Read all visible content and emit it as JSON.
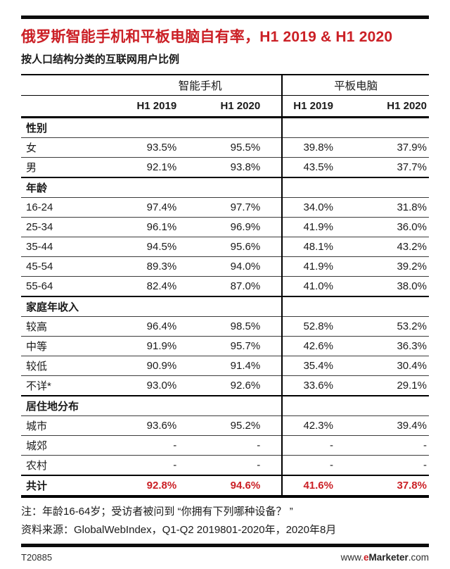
{
  "colors": {
    "accent": "#cb2026",
    "text": "#1a1a1a",
    "rule": "#000000"
  },
  "header": {
    "title": "俄罗斯智能手机和平板电脑自有率，H1 2019 & H1 2020",
    "subtitle": "按人口结构分类的互联网用户比例"
  },
  "chart_data": {
    "type": "table",
    "title": "俄罗斯智能手机和平板电脑自有率，H1 2019 & H1 2020",
    "subtitle": "按人口结构分类的互联网用户比例",
    "column_groups": [
      "智能手机",
      "平板电脑"
    ],
    "columns": [
      "H1 2019",
      "H1 2020",
      "H1 2019",
      "H1 2020"
    ],
    "rows": [
      {
        "type": "section",
        "label": "性别"
      },
      {
        "type": "data",
        "label": "女",
        "values": [
          "93.5%",
          "95.5%",
          "39.8%",
          "37.9%"
        ]
      },
      {
        "type": "data",
        "label": "男",
        "values": [
          "92.1%",
          "93.8%",
          "43.5%",
          "37.7%"
        ]
      },
      {
        "type": "section",
        "label": "年龄"
      },
      {
        "type": "data",
        "label": "16-24",
        "values": [
          "97.4%",
          "97.7%",
          "34.0%",
          "31.8%"
        ]
      },
      {
        "type": "data",
        "label": "25-34",
        "values": [
          "96.1%",
          "96.9%",
          "41.9%",
          "36.0%"
        ]
      },
      {
        "type": "data",
        "label": "35-44",
        "values": [
          "94.5%",
          "95.6%",
          "48.1%",
          "43.2%"
        ]
      },
      {
        "type": "data",
        "label": "45-54",
        "values": [
          "89.3%",
          "94.0%",
          "41.9%",
          "39.2%"
        ]
      },
      {
        "type": "data",
        "label": "55-64",
        "values": [
          "82.4%",
          "87.0%",
          "41.0%",
          "38.0%"
        ]
      },
      {
        "type": "section",
        "label": "家庭年收入"
      },
      {
        "type": "data",
        "label": "较高",
        "values": [
          "96.4%",
          "98.5%",
          "52.8%",
          "53.2%"
        ]
      },
      {
        "type": "data",
        "label": "中等",
        "values": [
          "91.9%",
          "95.7%",
          "42.6%",
          "36.3%"
        ]
      },
      {
        "type": "data",
        "label": "较低",
        "values": [
          "90.9%",
          "91.4%",
          "35.4%",
          "30.4%"
        ]
      },
      {
        "type": "data",
        "label": "不详*",
        "values": [
          "93.0%",
          "92.6%",
          "33.6%",
          "29.1%"
        ]
      },
      {
        "type": "section",
        "label": "居住地分布"
      },
      {
        "type": "data",
        "label": "城市",
        "values": [
          "93.6%",
          "95.2%",
          "42.3%",
          "39.4%"
        ]
      },
      {
        "type": "data",
        "label": "城郊",
        "values": [
          "-",
          "-",
          "-",
          "-"
        ]
      },
      {
        "type": "data",
        "label": "农村",
        "values": [
          "-",
          "-",
          "-",
          "-"
        ]
      },
      {
        "type": "total",
        "label": "共计",
        "values": [
          "92.8%",
          "94.6%",
          "41.6%",
          "37.8%"
        ]
      }
    ]
  },
  "notes": {
    "note": "注：年龄16-64岁；受访者被问到 “你拥有下列哪种设备？ ”",
    "source": "资料来源：GlobalWebIndex，Q1-Q2 2019801-2020年，2020年8月"
  },
  "footer": {
    "chart_id": "T20885",
    "site_prefix": "www.",
    "site_e": "e",
    "site_brand": "Marketer",
    "site_suffix": ".com"
  }
}
